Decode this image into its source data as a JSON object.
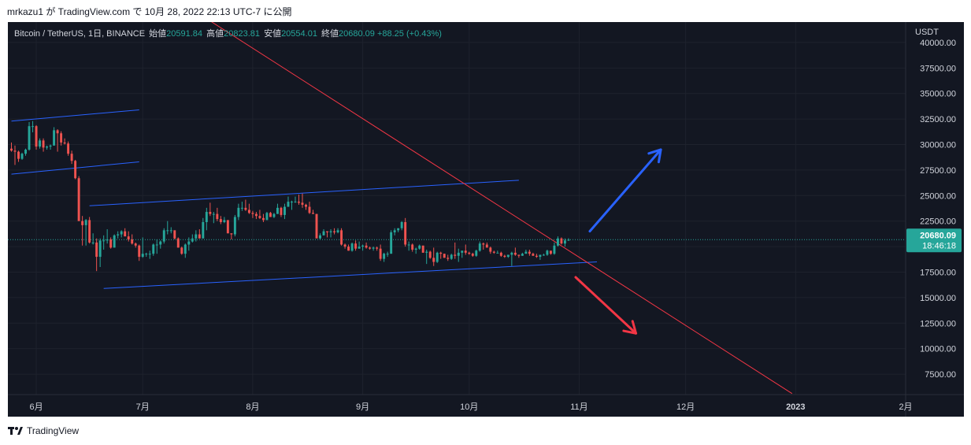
{
  "caption": "mrkazu1 が TradingView.com で 10月 28, 2022 22:13 UTC-7 に公開",
  "legend": {
    "symbol": "Bitcoin / TetherUS, 1日, BINANCE",
    "open_label": "始値",
    "open": "20591.84",
    "high_label": "高値",
    "high": "20823.81",
    "low_label": "安値",
    "low": "20554.01",
    "close_label": "終値",
    "close": "20680.09",
    "change": "+88.25 (+0.43%)"
  },
  "footer": {
    "brand": "TradingView",
    "logo_icon": "tradingview-logo-icon"
  },
  "chart_data": {
    "type": "candlestick",
    "currency": "USDT",
    "y_ticks": [
      "40000.00",
      "37500.00",
      "35000.00",
      "32500.00",
      "30000.00",
      "27500.00",
      "25000.00",
      "22500.00",
      "20000.00",
      "17500.00",
      "15000.00",
      "12500.00",
      "10000.00",
      "7500.00"
    ],
    "x_ticks": [
      "6月",
      "7月",
      "8月",
      "9月",
      "10月",
      "11月",
      "12月",
      "2023",
      "2月"
    ],
    "ylim": [
      5500,
      42000
    ],
    "last_price": "20680.09",
    "countdown": "18:46:18",
    "colors": {
      "background": "#131722",
      "up": "#26a69a",
      "down": "#ef5350",
      "channel": "#2962ff",
      "trendline": "#f23645",
      "arrow_up": "#2962ff",
      "arrow_down": "#f23645",
      "grid": "#1e222d"
    },
    "candles_approx": [
      [
        "2022-05-25",
        29600,
        30200,
        29300,
        29400
      ],
      [
        "2022-05-26",
        29400,
        29900,
        28000,
        29300
      ],
      [
        "2022-05-27",
        29300,
        29400,
        28300,
        28600
      ],
      [
        "2022-05-28",
        28600,
        29200,
        28500,
        29100
      ],
      [
        "2022-05-29",
        29100,
        29600,
        28900,
        29500
      ],
      [
        "2022-05-30",
        29500,
        32200,
        29400,
        31800
      ],
      [
        "2022-05-31",
        31800,
        32300,
        31200,
        31800
      ],
      [
        "2022-06-01",
        31800,
        31900,
        29500,
        29800
      ],
      [
        "2022-06-02",
        29800,
        30600,
        29600,
        30400
      ],
      [
        "2022-06-03",
        30400,
        30600,
        29300,
        29700
      ],
      [
        "2022-06-04",
        29700,
        29900,
        29500,
        29800
      ],
      [
        "2022-06-05",
        29800,
        30000,
        29500,
        29900
      ],
      [
        "2022-06-06",
        29900,
        31700,
        29900,
        31400
      ],
      [
        "2022-06-07",
        31400,
        31500,
        29300,
        31100
      ],
      [
        "2022-06-08",
        31100,
        31300,
        29900,
        30200
      ],
      [
        "2022-06-09",
        30200,
        30600,
        30000,
        30100
      ],
      [
        "2022-06-10",
        30100,
        30300,
        28900,
        29100
      ],
      [
        "2022-06-11",
        29100,
        29400,
        28100,
        28400
      ],
      [
        "2022-06-12",
        28400,
        28500,
        26600,
        26700
      ],
      [
        "2022-06-13",
        26700,
        26900,
        22600,
        22500
      ],
      [
        "2022-06-14",
        22500,
        23000,
        20100,
        22100
      ],
      [
        "2022-06-15",
        22100,
        22700,
        20100,
        22600
      ],
      [
        "2022-06-16",
        22600,
        22900,
        20300,
        20400
      ],
      [
        "2022-06-17",
        20400,
        21300,
        20200,
        20400
      ],
      [
        "2022-06-18",
        20400,
        20800,
        17600,
        19000
      ],
      [
        "2022-06-19",
        19000,
        20800,
        18000,
        20600
      ],
      [
        "2022-06-20",
        20600,
        21100,
        19700,
        20600
      ],
      [
        "2022-06-21",
        20600,
        21700,
        20300,
        20700
      ],
      [
        "2022-06-22",
        20700,
        20900,
        19800,
        19900
      ],
      [
        "2022-06-23",
        19900,
        21200,
        19900,
        21100
      ],
      [
        "2022-06-24",
        21100,
        21500,
        20800,
        21200
      ],
      [
        "2022-06-25",
        21200,
        21600,
        20900,
        21500
      ],
      [
        "2022-06-26",
        21500,
        21800,
        21000,
        21000
      ],
      [
        "2022-06-27",
        21000,
        21500,
        20500,
        20700
      ],
      [
        "2022-06-28",
        20700,
        21200,
        20200,
        20300
      ],
      [
        "2022-06-29",
        20300,
        20400,
        19900,
        20100
      ],
      [
        "2022-06-30",
        20100,
        20200,
        18600,
        19000
      ],
      [
        "2022-07-01",
        19000,
        20900,
        18900,
        19300
      ],
      [
        "2022-07-02",
        19300,
        19400,
        19000,
        19300
      ],
      [
        "2022-07-03",
        19300,
        19600,
        18800,
        19300
      ],
      [
        "2022-07-04",
        19300,
        20300,
        19100,
        20200
      ],
      [
        "2022-07-05",
        20200,
        20700,
        19300,
        20200
      ],
      [
        "2022-07-06",
        20200,
        20600,
        19800,
        20500
      ],
      [
        "2022-07-07",
        20500,
        21800,
        20300,
        21600
      ],
      [
        "2022-07-08",
        21600,
        22500,
        21200,
        21600
      ],
      [
        "2022-07-09",
        21600,
        21900,
        21300,
        21600
      ],
      [
        "2022-07-10",
        21600,
        21600,
        20700,
        20800
      ],
      [
        "2022-07-11",
        20800,
        20900,
        19900,
        19900
      ],
      [
        "2022-07-12",
        19900,
        20000,
        19200,
        19300
      ],
      [
        "2022-07-13",
        19300,
        20300,
        18900,
        20200
      ],
      [
        "2022-07-14",
        20200,
        20900,
        19600,
        20500
      ],
      [
        "2022-07-15",
        20500,
        21200,
        20400,
        20800
      ],
      [
        "2022-07-16",
        20800,
        21600,
        20500,
        21200
      ],
      [
        "2022-07-17",
        21200,
        21700,
        20800,
        20800
      ],
      [
        "2022-07-18",
        20800,
        22800,
        20800,
        22400
      ],
      [
        "2022-07-19",
        22400,
        23800,
        21600,
        23400
      ],
      [
        "2022-07-20",
        23400,
        24300,
        23000,
        23200
      ],
      [
        "2022-07-21",
        23200,
        23400,
        22300,
        23200
      ],
      [
        "2022-07-22",
        23200,
        23800,
        22500,
        22700
      ],
      [
        "2022-07-23",
        22700,
        23000,
        22200,
        22400
      ],
      [
        "2022-07-24",
        22400,
        22900,
        22300,
        22600
      ],
      [
        "2022-07-25",
        22600,
        22600,
        21300,
        21300
      ],
      [
        "2022-07-26",
        21300,
        21300,
        20700,
        21200
      ],
      [
        "2022-07-27",
        21200,
        23100,
        21000,
        22900
      ],
      [
        "2022-07-28",
        22900,
        24200,
        22600,
        23800
      ],
      [
        "2022-07-29",
        23800,
        24400,
        23500,
        23800
      ],
      [
        "2022-07-30",
        23800,
        24600,
        23500,
        23600
      ],
      [
        "2022-07-31",
        23600,
        24200,
        23200,
        23300
      ],
      [
        "2022-08-01",
        23300,
        23500,
        22800,
        23200
      ],
      [
        "2022-08-02",
        23200,
        23400,
        22700,
        23000
      ],
      [
        "2022-08-03",
        23000,
        23600,
        22700,
        22800
      ],
      [
        "2022-08-04",
        22800,
        23200,
        22400,
        22600
      ],
      [
        "2022-08-05",
        22600,
        23400,
        22600,
        23300
      ],
      [
        "2022-08-06",
        23300,
        23400,
        22900,
        22900
      ],
      [
        "2022-08-07",
        22900,
        23300,
        22800,
        23200
      ],
      [
        "2022-08-08",
        23200,
        24200,
        23200,
        23800
      ],
      [
        "2022-08-09",
        23800,
        23900,
        22900,
        23100
      ],
      [
        "2022-08-10",
        23100,
        24200,
        22700,
        23900
      ],
      [
        "2022-08-11",
        23900,
        24900,
        23900,
        24400
      ],
      [
        "2022-08-12",
        24400,
        24500,
        23600,
        24400
      ],
      [
        "2022-08-13",
        24400,
        24900,
        24300,
        24400
      ],
      [
        "2022-08-14",
        24400,
        25100,
        24100,
        24300
      ],
      [
        "2022-08-15",
        24300,
        25200,
        23800,
        24100
      ],
      [
        "2022-08-16",
        24100,
        24200,
        23600,
        23900
      ],
      [
        "2022-08-17",
        23900,
        24400,
        23200,
        23300
      ],
      [
        "2022-08-18",
        23300,
        23600,
        23200,
        23200
      ],
      [
        "2022-08-19",
        23200,
        23200,
        20900,
        20800
      ],
      [
        "2022-08-20",
        20800,
        21300,
        20700,
        21100
      ],
      [
        "2022-08-21",
        21100,
        21700,
        21100,
        21500
      ],
      [
        "2022-08-22",
        21500,
        21500,
        20900,
        21400
      ],
      [
        "2022-08-23",
        21400,
        21700,
        20900,
        21500
      ],
      [
        "2022-08-24",
        21500,
        21800,
        21200,
        21400
      ],
      [
        "2022-08-25",
        21400,
        21800,
        21300,
        21600
      ],
      [
        "2022-08-26",
        21600,
        21800,
        20100,
        20200
      ],
      [
        "2022-08-27",
        20200,
        20300,
        19800,
        20000
      ],
      [
        "2022-08-28",
        20000,
        20200,
        19600,
        19600
      ],
      [
        "2022-08-29",
        19600,
        20400,
        19500,
        20300
      ],
      [
        "2022-08-30",
        20300,
        20600,
        19600,
        19800
      ],
      [
        "2022-08-31",
        19800,
        20500,
        19800,
        20000
      ],
      [
        "2022-09-01",
        20000,
        20200,
        19600,
        20100
      ],
      [
        "2022-09-02",
        20100,
        20400,
        19800,
        19900
      ],
      [
        "2022-09-03",
        19900,
        20000,
        19700,
        19800
      ],
      [
        "2022-09-04",
        19800,
        20000,
        19600,
        19900
      ],
      [
        "2022-09-05",
        19900,
        20000,
        19600,
        19800
      ],
      [
        "2022-09-06",
        19800,
        20200,
        18600,
        18800
      ],
      [
        "2022-09-07",
        18800,
        19400,
        18500,
        19300
      ],
      [
        "2022-09-08",
        19300,
        19500,
        19000,
        19300
      ],
      [
        "2022-09-09",
        19300,
        21600,
        19300,
        21400
      ],
      [
        "2022-09-10",
        21400,
        21800,
        21100,
        21600
      ],
      [
        "2022-09-11",
        21600,
        21800,
        21400,
        21800
      ],
      [
        "2022-09-12",
        21800,
        22500,
        21600,
        22400
      ],
      [
        "2022-09-13",
        22400,
        22800,
        20000,
        20200
      ],
      [
        "2022-09-14",
        20200,
        20500,
        19600,
        20200
      ],
      [
        "2022-09-15",
        20200,
        20300,
        19500,
        19700
      ],
      [
        "2022-09-16",
        19700,
        19900,
        19300,
        19800
      ],
      [
        "2022-09-17",
        19800,
        20200,
        19700,
        20100
      ],
      [
        "2022-09-18",
        20100,
        20100,
        19400,
        19400
      ],
      [
        "2022-09-19",
        19400,
        19700,
        18300,
        19500
      ],
      [
        "2022-09-20",
        19500,
        19600,
        18800,
        18900
      ],
      [
        "2022-09-21",
        18900,
        19900,
        18100,
        18500
      ],
      [
        "2022-09-22",
        18500,
        19500,
        18400,
        19400
      ],
      [
        "2022-09-23",
        19400,
        19500,
        18800,
        19300
      ],
      [
        "2022-09-24",
        19300,
        19300,
        18900,
        18900
      ],
      [
        "2022-09-25",
        18900,
        19200,
        18600,
        18800
      ],
      [
        "2022-09-26",
        18800,
        19300,
        18700,
        19200
      ],
      [
        "2022-09-27",
        19200,
        20400,
        18800,
        19100
      ],
      [
        "2022-09-28",
        19100,
        19800,
        18500,
        19400
      ],
      [
        "2022-09-29",
        19400,
        19600,
        18900,
        19600
      ],
      [
        "2022-09-30",
        19600,
        20200,
        19200,
        19400
      ],
      [
        "2022-10-01",
        19400,
        19500,
        19200,
        19300
      ],
      [
        "2022-10-02",
        19300,
        19400,
        19000,
        19100
      ],
      [
        "2022-10-03",
        19100,
        19700,
        19000,
        19600
      ],
      [
        "2022-10-04",
        19600,
        20500,
        19500,
        20300
      ],
      [
        "2022-10-05",
        20300,
        20400,
        19700,
        20200
      ],
      [
        "2022-10-06",
        20200,
        20400,
        19900,
        19900
      ],
      [
        "2022-10-07",
        19900,
        20000,
        19300,
        19500
      ],
      [
        "2022-10-08",
        19500,
        19600,
        19300,
        19400
      ],
      [
        "2022-10-09",
        19400,
        19600,
        19400,
        19400
      ],
      [
        "2022-10-10",
        19400,
        19500,
        19000,
        19100
      ],
      [
        "2022-10-11",
        19100,
        19200,
        18900,
        19000
      ],
      [
        "2022-10-12",
        19000,
        19200,
        18900,
        19200
      ],
      [
        "2022-10-13",
        19200,
        19500,
        18100,
        19400
      ],
      [
        "2022-10-14",
        19400,
        19900,
        19100,
        19200
      ],
      [
        "2022-10-15",
        19200,
        19200,
        18900,
        19100
      ],
      [
        "2022-10-16",
        19100,
        19400,
        19100,
        19300
      ],
      [
        "2022-10-17",
        19300,
        19700,
        19300,
        19500
      ],
      [
        "2022-10-18",
        19500,
        19700,
        19100,
        19300
      ],
      [
        "2022-10-19",
        19300,
        19400,
        19100,
        19100
      ],
      [
        "2022-10-20",
        19100,
        19300,
        18900,
        19000
      ],
      [
        "2022-10-21",
        19000,
        19200,
        18700,
        19200
      ],
      [
        "2022-10-22",
        19200,
        19300,
        19100,
        19200
      ],
      [
        "2022-10-23",
        19200,
        19700,
        19100,
        19600
      ],
      [
        "2022-10-24",
        19600,
        19600,
        19200,
        19300
      ],
      [
        "2022-10-25",
        19300,
        20400,
        19200,
        20100
      ],
      [
        "2022-10-26",
        20100,
        21000,
        20000,
        20800
      ],
      [
        "2022-10-27",
        20800,
        20900,
        20200,
        20300
      ],
      [
        "2022-10-28",
        20300,
        20800,
        20000,
        20600
      ],
      [
        "2022-10-29",
        20592,
        20824,
        20554,
        20680
      ]
    ],
    "annotations": [
      {
        "type": "upper_channel_line",
        "from": [
          "2022-05-25",
          32300
        ],
        "to": [
          "2022-06-30",
          33400
        ]
      },
      {
        "type": "upper_channel_line",
        "from": [
          "2022-05-25",
          27100
        ],
        "to": [
          "2022-06-30",
          28300
        ]
      },
      {
        "type": "upper_channel_line",
        "from": [
          "2022-06-16",
          24000
        ],
        "to": [
          "2022-10-15",
          26500
        ]
      },
      {
        "type": "lower_channel_line",
        "from": [
          "2022-06-20",
          15900
        ],
        "to": [
          "2022-11-06",
          18500
        ]
      },
      {
        "type": "descending_trendline",
        "from": [
          "2022-07-16",
          43000
        ],
        "to": [
          "2022-12-31",
          5600
        ]
      },
      {
        "type": "arrow_up",
        "from": [
          "2022-11-04",
          21500
        ],
        "to": [
          "2022-11-24",
          29500
        ]
      },
      {
        "type": "arrow_down",
        "from": [
          "2022-10-31",
          17000
        ],
        "to": [
          "2022-11-17",
          11500
        ]
      }
    ]
  }
}
